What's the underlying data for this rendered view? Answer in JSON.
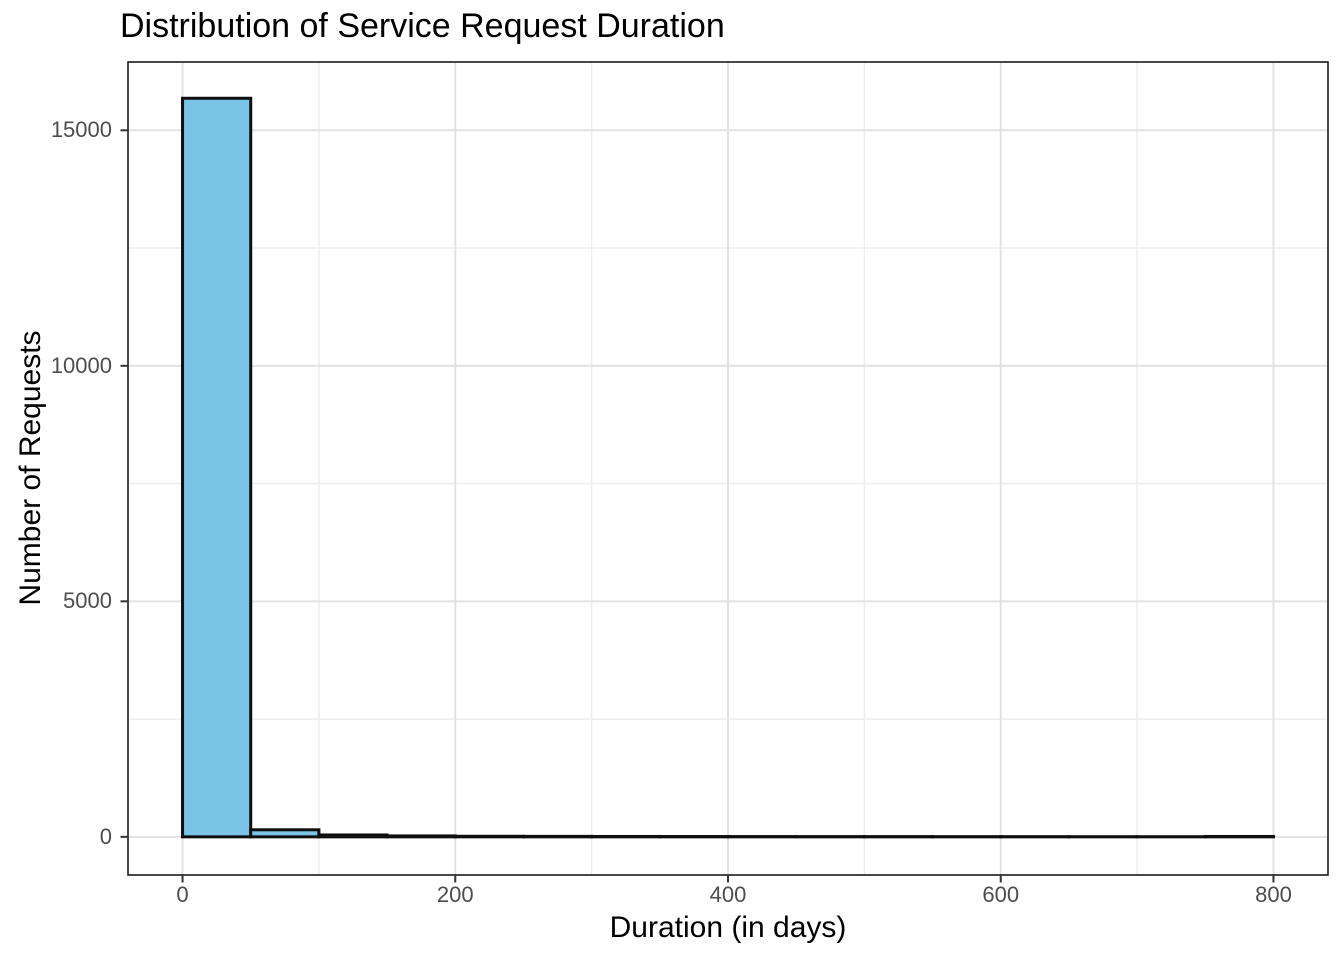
{
  "chart_data": {
    "type": "histogram",
    "title": "Distribution of Service Request Duration",
    "xlabel": "Duration (in days)",
    "ylabel": "Number of Requests",
    "bin_width": 50,
    "bin_edges": [
      0,
      50,
      100,
      150,
      200,
      250,
      300,
      350,
      400,
      450,
      500,
      550,
      600,
      650,
      700,
      750,
      800
    ],
    "counts": [
      15680,
      150,
      40,
      20,
      12,
      10,
      8,
      7,
      6,
      5,
      5,
      4,
      4,
      3,
      3,
      8
    ],
    "x_ticks": [
      0,
      200,
      400,
      600,
      800
    ],
    "x_minor_gridlines": [
      100,
      300,
      500,
      700
    ],
    "y_ticks": [
      0,
      5000,
      10000,
      15000
    ],
    "y_minor_gridlines": [
      2500,
      7500,
      12500
    ],
    "xlim": [
      -40,
      840
    ],
    "ylim": [
      -810,
      16450
    ],
    "grid": true,
    "legend": "none",
    "colors": {
      "bar_fill": "#79C3E6",
      "bar_stroke": "#0F0F0F",
      "grid_major": "#E2E2E2",
      "grid_minor": "#EDEDED",
      "panel_border": "#1A1A1A",
      "tick_mark": "#333333",
      "tick_label": "#4D4D4D",
      "title": "#000000",
      "background": "#FFFFFF",
      "panel_background": "#FFFFFF"
    }
  }
}
